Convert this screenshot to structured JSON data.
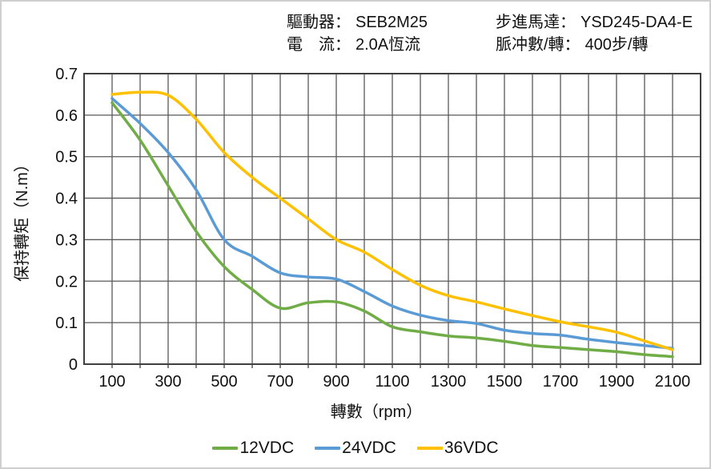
{
  "header": {
    "left": [
      {
        "label": "驅動器：",
        "value": "SEB2M25"
      },
      {
        "label": "電　流：",
        "value": "2.0A恆流"
      }
    ],
    "right": [
      {
        "label": "步進馬達：",
        "value": "YSD245-DA4-E"
      },
      {
        "label": "脈冲數/轉：",
        "value": "400步/轉"
      }
    ]
  },
  "chart_data": {
    "type": "line",
    "title": "",
    "xlabel": "轉數（rpm）",
    "ylabel": "保持轉矩（N.m）",
    "x": [
      100,
      200,
      300,
      400,
      500,
      600,
      700,
      800,
      900,
      1000,
      1100,
      1200,
      1300,
      1400,
      1500,
      1600,
      1700,
      1800,
      1900,
      2000,
      2100
    ],
    "series": [
      {
        "name": "12VDC",
        "color": "#70AD47",
        "values": [
          0.63,
          0.54,
          0.43,
          0.32,
          0.235,
          0.18,
          0.135,
          0.148,
          0.15,
          0.128,
          0.09,
          0.078,
          0.068,
          0.063,
          0.055,
          0.045,
          0.04,
          0.035,
          0.03,
          0.023,
          0.018
        ]
      },
      {
        "name": "24VDC",
        "color": "#5B9BD5",
        "values": [
          0.64,
          0.58,
          0.51,
          0.42,
          0.3,
          0.26,
          0.22,
          0.21,
          0.205,
          0.175,
          0.14,
          0.118,
          0.105,
          0.098,
          0.082,
          0.074,
          0.07,
          0.06,
          0.052,
          0.045,
          0.038
        ]
      },
      {
        "name": "36VDC",
        "color": "#FFC000",
        "values": [
          0.65,
          0.655,
          0.648,
          0.59,
          0.51,
          0.45,
          0.4,
          0.35,
          0.3,
          0.27,
          0.228,
          0.19,
          0.165,
          0.15,
          0.133,
          0.117,
          0.102,
          0.09,
          0.077,
          0.056,
          0.035
        ]
      }
    ],
    "xlim": [
      0,
      2200
    ],
    "ylim": [
      0,
      0.7
    ],
    "x_tick_labels": [
      "100",
      "300",
      "500",
      "700",
      "900",
      "1100",
      "1300",
      "1500",
      "1700",
      "1900",
      "2100"
    ],
    "y_tick_labels": [
      "0",
      "0.1",
      "0.2",
      "0.3",
      "0.4",
      "0.5",
      "0.6",
      "0.7"
    ],
    "x_grid_step": 100,
    "y_grid_step": 0.1,
    "grid": true,
    "legend_position": "bottom",
    "grid_color": "#595959",
    "frame_color": "#3f3f3f"
  }
}
